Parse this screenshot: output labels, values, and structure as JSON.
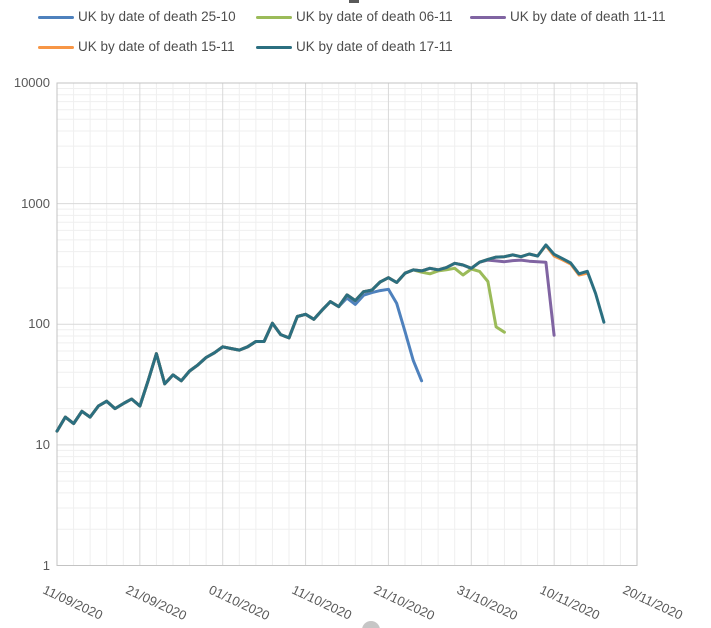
{
  "chart_data": {
    "type": "line",
    "title": "",
    "x_axis_label": "",
    "y_axis_label": "",
    "y_scale": "log",
    "ylim": [
      1,
      10000
    ],
    "grid": "on",
    "legend_position": "top",
    "x_start_date": "11/09/2020",
    "x_tick_labels": [
      "11/09/2020",
      "21/09/2020",
      "01/10/2020",
      "11/10/2020",
      "21/10/2020",
      "31/10/2020",
      "10/11/2020",
      "20/11/2020"
    ],
    "y_tick_labels": [
      "10000",
      "1000",
      "100",
      "10",
      "1"
    ],
    "y_tick_values": [
      10000,
      1000,
      100,
      10,
      1
    ],
    "series": [
      {
        "name": "UK by date of death 25-10",
        "color": "#4E81BD",
        "start_date": "11/09/2020",
        "values": [
          13,
          17,
          15,
          19,
          17,
          21,
          23,
          20,
          22,
          24,
          21,
          34,
          57,
          32,
          38,
          34,
          41,
          46,
          53,
          58,
          65,
          63,
          61,
          65,
          72,
          72,
          102,
          82,
          77,
          116,
          121,
          110,
          131,
          154,
          140,
          165,
          146,
          174,
          183,
          190,
          195,
          149,
          87,
          50,
          34
        ]
      },
      {
        "name": "UK by date of death 06-11",
        "color": "#9BBB59",
        "start_date": "11/09/2020",
        "values": [
          13,
          17,
          15,
          19,
          17,
          21,
          23,
          20,
          22,
          24,
          21,
          34,
          57,
          32,
          38,
          34,
          41,
          46,
          53,
          58,
          65,
          63,
          61,
          65,
          72,
          72,
          102,
          82,
          77,
          116,
          121,
          110,
          131,
          154,
          140,
          175,
          157,
          186,
          192,
          224,
          243,
          222,
          265,
          282,
          270,
          262,
          277,
          283,
          291,
          256,
          287,
          274,
          226,
          95,
          86
        ]
      },
      {
        "name": "UK by date of death 11-11",
        "color": "#8064A2",
        "start_date": "11/09/2020",
        "values": [
          13,
          17,
          15,
          19,
          17,
          21,
          23,
          20,
          22,
          24,
          21,
          34,
          57,
          32,
          38,
          34,
          41,
          46,
          53,
          58,
          65,
          63,
          61,
          65,
          72,
          72,
          102,
          82,
          77,
          116,
          121,
          110,
          131,
          154,
          140,
          175,
          157,
          186,
          192,
          224,
          243,
          222,
          265,
          282,
          277,
          291,
          282,
          295,
          320,
          310,
          291,
          327,
          340,
          335,
          330,
          337,
          340,
          333,
          330,
          327,
          81
        ]
      },
      {
        "name": "UK by date of death 15-11",
        "color": "#F79646",
        "start_date": "11/09/2020",
        "values": [
          13,
          17,
          15,
          19,
          17,
          21,
          23,
          20,
          22,
          24,
          21,
          34,
          57,
          32,
          38,
          34,
          41,
          46,
          53,
          58,
          65,
          63,
          61,
          65,
          72,
          72,
          102,
          82,
          77,
          116,
          121,
          110,
          131,
          154,
          140,
          175,
          157,
          186,
          192,
          224,
          243,
          222,
          265,
          282,
          277,
          291,
          282,
          295,
          320,
          310,
          291,
          327,
          345,
          360,
          363,
          376,
          363,
          382,
          368,
          450,
          368,
          342,
          316,
          256,
          265
        ]
      },
      {
        "name": "UK by date of death 17-11",
        "color": "#2B6F80",
        "start_date": "11/09/2020",
        "values": [
          13,
          17,
          15,
          19,
          17,
          21,
          23,
          20,
          22,
          24,
          21,
          34,
          57,
          32,
          38,
          34,
          41,
          46,
          53,
          58,
          65,
          63,
          61,
          65,
          72,
          72,
          102,
          82,
          77,
          116,
          121,
          110,
          131,
          154,
          140,
          175,
          157,
          186,
          192,
          224,
          243,
          222,
          265,
          282,
          277,
          291,
          282,
          295,
          320,
          310,
          291,
          327,
          345,
          360,
          363,
          376,
          363,
          382,
          367,
          455,
          380,
          350,
          322,
          262,
          275,
          180,
          104
        ]
      }
    ]
  }
}
